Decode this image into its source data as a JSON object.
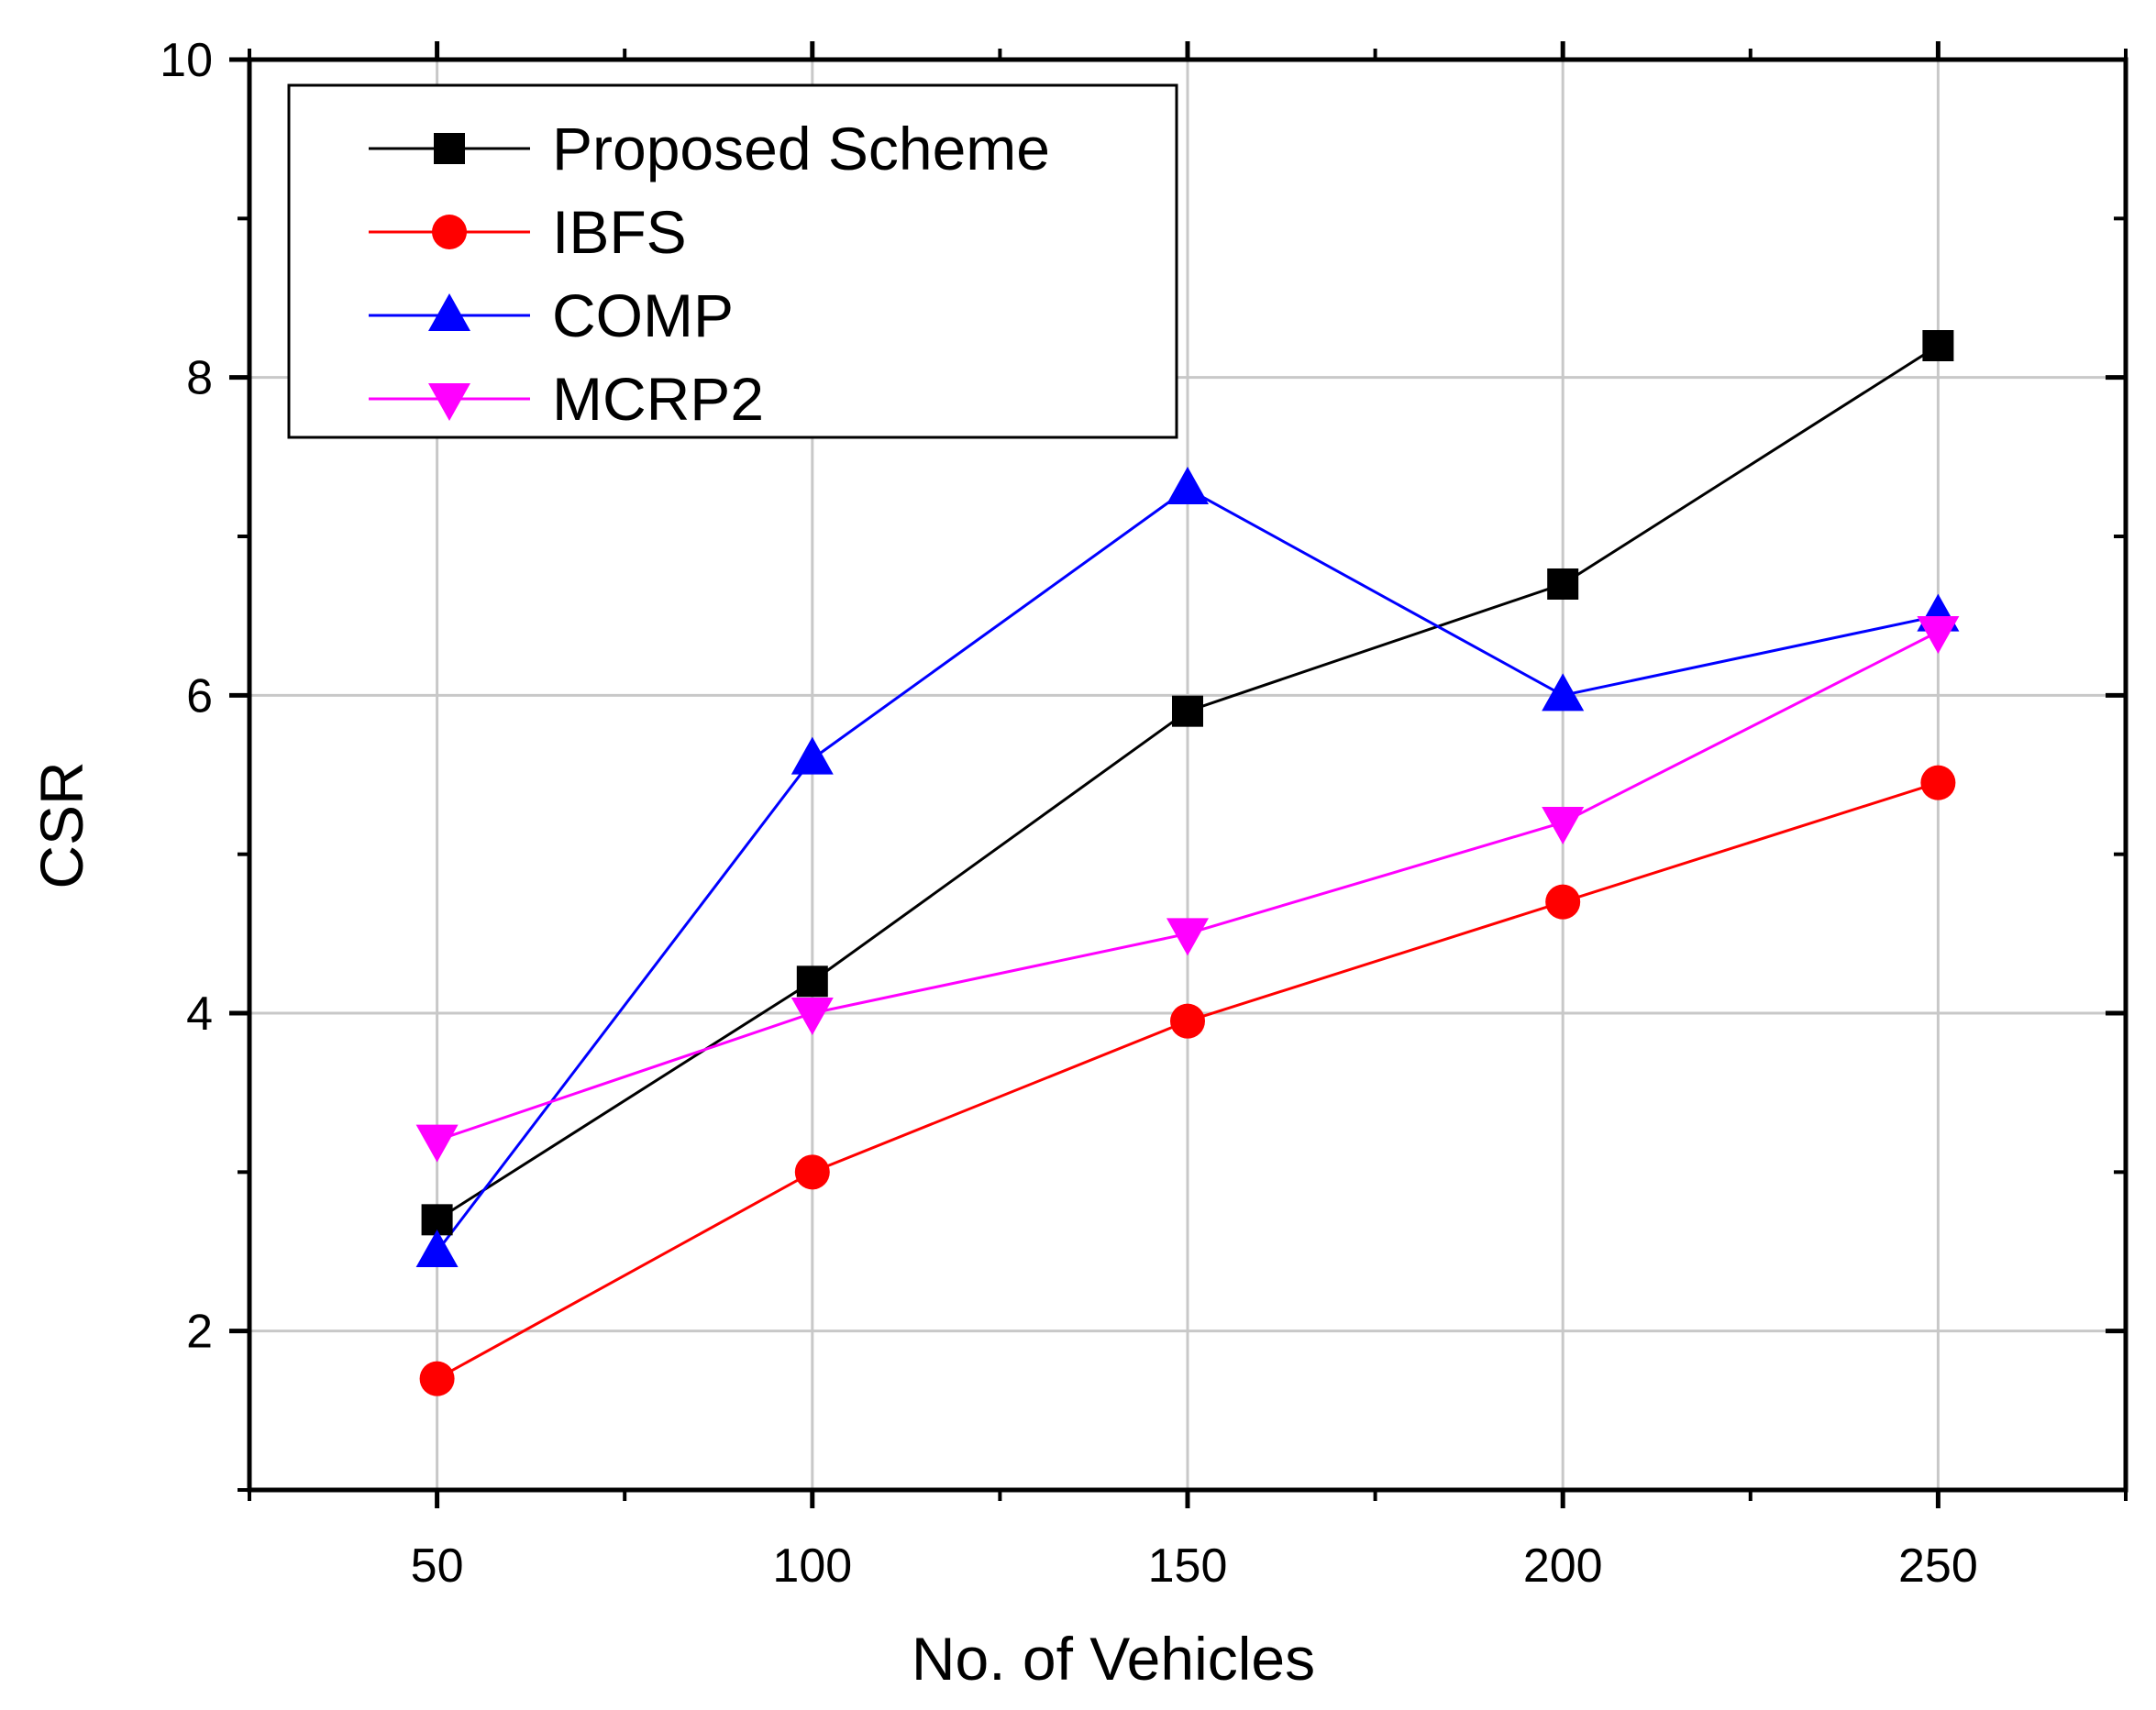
{
  "chart_data": {
    "type": "line",
    "title": "",
    "xlabel": "No. of Vehicles",
    "ylabel": "CSR",
    "xlim": [
      25,
      275
    ],
    "ylim": [
      1,
      10
    ],
    "x": [
      50,
      100,
      150,
      200,
      250
    ],
    "xticks": [
      "50",
      "100",
      "150",
      "200",
      "250"
    ],
    "yticks": [
      "2",
      "4",
      "6",
      "8",
      "10"
    ],
    "grid": true,
    "legend_position": "top-left",
    "series": [
      {
        "name": "Proposed Scheme",
        "color": "#000000",
        "marker": "square",
        "values": [
          2.7,
          4.2,
          5.9,
          6.7,
          8.2
        ]
      },
      {
        "name": "IBFS",
        "color": "#ff0000",
        "marker": "circle",
        "values": [
          1.7,
          3.0,
          3.95,
          4.7,
          5.45
        ]
      },
      {
        "name": "COMP",
        "color": "#0000ff",
        "marker": "triangle-up",
        "values": [
          2.5,
          5.6,
          7.3,
          6.0,
          6.5
        ]
      },
      {
        "name": "MCRP2",
        "color": "#ff00ff",
        "marker": "triangle-down",
        "values": [
          3.2,
          4.0,
          4.5,
          5.2,
          6.4
        ]
      }
    ]
  }
}
